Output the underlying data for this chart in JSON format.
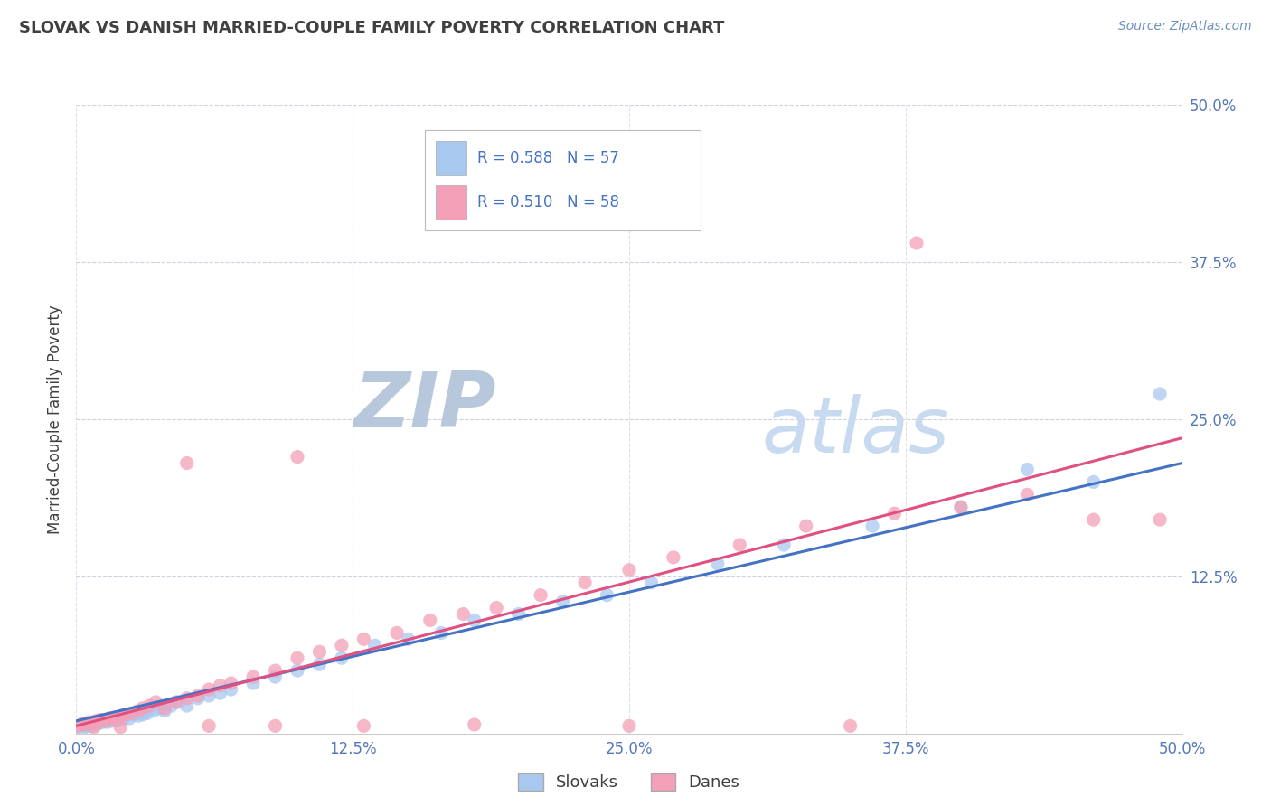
{
  "title": "SLOVAK VS DANISH MARRIED-COUPLE FAMILY POVERTY CORRELATION CHART",
  "source": "Source: ZipAtlas.com",
  "ylabel": "Married-Couple Family Poverty",
  "xlim": [
    0.0,
    0.5
  ],
  "ylim": [
    0.0,
    0.5
  ],
  "xtick_labels": [
    "0.0%",
    "12.5%",
    "25.0%",
    "37.5%",
    "50.0%"
  ],
  "xtick_vals": [
    0.0,
    0.125,
    0.25,
    0.375,
    0.5
  ],
  "ytick_labels": [
    "12.5%",
    "25.0%",
    "37.5%",
    "50.0%"
  ],
  "ytick_vals": [
    0.125,
    0.25,
    0.375,
    0.5
  ],
  "slovak_R": "0.588",
  "slovak_N": "57",
  "dane_R": "0.510",
  "dane_N": "58",
  "slovak_color": "#a8c8f0",
  "dane_color": "#f4a0b8",
  "slovak_line_color": "#4472c4",
  "dane_line_color": "#e05080",
  "title_color": "#404040",
  "axis_label_color": "#404040",
  "tick_color": "#5578bb",
  "watermark_ZIP_color": "#c0ccdd",
  "watermark_atlas_color": "#c8d8f0",
  "grid_color": "#c8cce0",
  "legend_text_color": "#4472c4",
  "background_color": "#ffffff",
  "slovak_x": [
    0.001,
    0.002,
    0.003,
    0.004,
    0.005,
    0.005,
    0.006,
    0.007,
    0.008,
    0.009,
    0.01,
    0.011,
    0.012,
    0.013,
    0.014,
    0.015,
    0.016,
    0.017,
    0.018,
    0.019,
    0.02,
    0.022,
    0.024,
    0.026,
    0.028,
    0.03,
    0.032,
    0.035,
    0.038,
    0.04,
    0.043,
    0.046,
    0.05,
    0.055,
    0.06,
    0.065,
    0.07,
    0.08,
    0.09,
    0.1,
    0.11,
    0.12,
    0.135,
    0.15,
    0.165,
    0.18,
    0.2,
    0.22,
    0.24,
    0.26,
    0.29,
    0.32,
    0.36,
    0.4,
    0.43,
    0.46,
    0.49
  ],
  "slovak_y": [
    0.005,
    0.006,
    0.007,
    0.005,
    0.006,
    0.008,
    0.007,
    0.006,
    0.008,
    0.007,
    0.008,
    0.009,
    0.009,
    0.01,
    0.009,
    0.01,
    0.01,
    0.011,
    0.01,
    0.012,
    0.011,
    0.013,
    0.012,
    0.015,
    0.014,
    0.015,
    0.016,
    0.018,
    0.02,
    0.018,
    0.022,
    0.025,
    0.022,
    0.028,
    0.03,
    0.032,
    0.035,
    0.04,
    0.045,
    0.05,
    0.055,
    0.06,
    0.07,
    0.075,
    0.08,
    0.09,
    0.095,
    0.105,
    0.11,
    0.12,
    0.135,
    0.15,
    0.165,
    0.18,
    0.21,
    0.2,
    0.27
  ],
  "dane_x": [
    0.001,
    0.003,
    0.004,
    0.006,
    0.007,
    0.009,
    0.01,
    0.011,
    0.013,
    0.015,
    0.016,
    0.018,
    0.02,
    0.022,
    0.025,
    0.028,
    0.03,
    0.033,
    0.036,
    0.04,
    0.045,
    0.05,
    0.055,
    0.06,
    0.065,
    0.07,
    0.08,
    0.09,
    0.1,
    0.11,
    0.12,
    0.13,
    0.145,
    0.16,
    0.175,
    0.19,
    0.21,
    0.23,
    0.25,
    0.27,
    0.3,
    0.33,
    0.37,
    0.4,
    0.43,
    0.46,
    0.008,
    0.02,
    0.06,
    0.09,
    0.13,
    0.18,
    0.25,
    0.35,
    0.49,
    0.05,
    0.1,
    0.38
  ],
  "dane_y": [
    0.006,
    0.008,
    0.007,
    0.009,
    0.008,
    0.01,
    0.009,
    0.011,
    0.01,
    0.012,
    0.011,
    0.013,
    0.014,
    0.015,
    0.016,
    0.018,
    0.02,
    0.022,
    0.025,
    0.02,
    0.025,
    0.028,
    0.03,
    0.035,
    0.038,
    0.04,
    0.045,
    0.05,
    0.06,
    0.065,
    0.07,
    0.075,
    0.08,
    0.09,
    0.095,
    0.1,
    0.11,
    0.12,
    0.13,
    0.14,
    0.15,
    0.165,
    0.175,
    0.18,
    0.19,
    0.17,
    0.005,
    0.005,
    0.006,
    0.006,
    0.006,
    0.007,
    0.006,
    0.006,
    0.17,
    0.215,
    0.22,
    0.39
  ]
}
